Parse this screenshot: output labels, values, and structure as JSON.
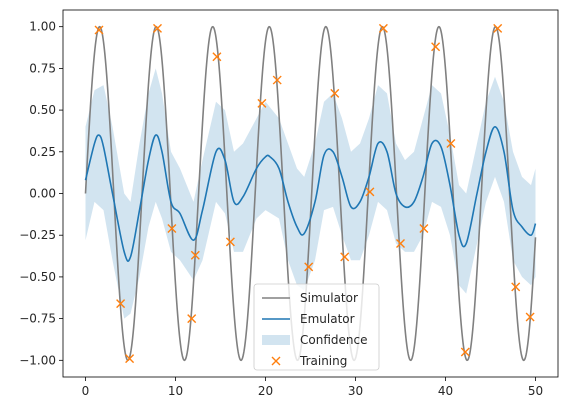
{
  "chart_data": {
    "type": "line",
    "title": "",
    "xlabel": "",
    "ylabel": "",
    "xlim": [
      -2.5,
      52.5
    ],
    "ylim": [
      -1.1,
      1.1
    ],
    "xticks": [
      0,
      10,
      20,
      30,
      40,
      50
    ],
    "yticks": [
      -1.0,
      -0.75,
      -0.5,
      -0.25,
      0.0,
      0.25,
      0.5,
      0.75,
      1.0
    ],
    "xtick_labels": [
      "0",
      "10",
      "20",
      "30",
      "40",
      "50"
    ],
    "ytick_labels": [
      "−1.00",
      "−0.75",
      "−0.50",
      "−0.25",
      "0.00",
      "0.25",
      "0.50",
      "0.75",
      "1.00"
    ],
    "grid": false,
    "legend_position": "lower center",
    "legend": [
      "Simulator",
      "Emulator",
      "Confidence",
      "Training"
    ],
    "series": [
      {
        "name": "Simulator",
        "type": "line",
        "color": "#808080",
        "function": "sin(x)",
        "x_range": [
          0,
          50
        ]
      },
      {
        "name": "Emulator",
        "type": "line",
        "color": "#1f77b4",
        "x": [
          0,
          1,
          1.5,
          2,
          3,
          4.3,
          5,
          6,
          7,
          7.8,
          8.5,
          9.5,
          10.5,
          12,
          13,
          14.5,
          15.5,
          16.5,
          17.5,
          19,
          20,
          20.5,
          21.5,
          22.5,
          23.5,
          24.3,
          25.5,
          26.5,
          27.5,
          28.5,
          29.5,
          30.5,
          31.5,
          32.5,
          33.5,
          34.5,
          35.5,
          36.5,
          37.5,
          38.5,
          39.5,
          40.5,
          41.5,
          42.3,
          43.5,
          44.5,
          45.5,
          46.5,
          47.5,
          48.5,
          49.5,
          50
        ],
        "y": [
          0.08,
          0.3,
          0.35,
          0.28,
          0.0,
          -0.35,
          -0.38,
          -0.1,
          0.2,
          0.35,
          0.25,
          -0.05,
          -0.12,
          -0.28,
          -0.1,
          0.25,
          0.2,
          -0.05,
          -0.02,
          0.15,
          0.22,
          0.22,
          0.15,
          -0.05,
          -0.2,
          -0.24,
          -0.05,
          0.23,
          0.25,
          0.1,
          -0.08,
          -0.05,
          0.1,
          0.3,
          0.25,
          0.0,
          -0.08,
          -0.05,
          0.1,
          0.3,
          0.28,
          0.05,
          -0.25,
          -0.3,
          0.0,
          0.25,
          0.4,
          0.25,
          -0.1,
          -0.2,
          -0.25,
          -0.18
        ]
      },
      {
        "name": "Confidence",
        "type": "area",
        "color": "#1f77b4",
        "x": [
          0,
          1,
          2,
          3,
          4.3,
          5,
          6,
          7,
          7.8,
          8.5,
          9.5,
          10.5,
          12,
          13,
          14.5,
          15.5,
          16.5,
          17.5,
          19,
          20,
          21.5,
          22.5,
          23.5,
          24.3,
          25.5,
          26.5,
          27.5,
          28.5,
          29.5,
          30.5,
          31.5,
          32.5,
          33.5,
          34.5,
          35.5,
          36.5,
          37.5,
          38.5,
          39.5,
          40.5,
          41.5,
          42.3,
          43.5,
          44.5,
          45.5,
          46.5,
          47.5,
          48.5,
          49.5,
          50
        ],
        "upper": [
          0.4,
          0.62,
          0.65,
          0.4,
          0.0,
          -0.05,
          0.3,
          0.6,
          0.75,
          0.6,
          0.25,
          0.15,
          -0.05,
          0.2,
          0.55,
          0.5,
          0.25,
          0.3,
          0.45,
          0.55,
          0.45,
          0.3,
          0.15,
          0.1,
          0.3,
          0.55,
          0.6,
          0.45,
          0.25,
          0.3,
          0.45,
          0.65,
          0.6,
          0.3,
          0.2,
          0.25,
          0.45,
          0.65,
          0.6,
          0.35,
          0.05,
          0.0,
          0.3,
          0.55,
          0.7,
          0.55,
          0.25,
          0.1,
          0.05,
          0.15
        ],
        "lower": [
          -0.28,
          -0.05,
          -0.1,
          -0.4,
          -0.75,
          -0.72,
          -0.5,
          -0.2,
          -0.05,
          -0.15,
          -0.35,
          -0.4,
          -0.52,
          -0.4,
          -0.05,
          -0.12,
          -0.35,
          -0.35,
          -0.15,
          -0.1,
          -0.15,
          -0.4,
          -0.55,
          -0.58,
          -0.4,
          -0.1,
          -0.08,
          -0.25,
          -0.4,
          -0.4,
          -0.25,
          -0.05,
          -0.1,
          -0.3,
          -0.35,
          -0.35,
          -0.25,
          -0.05,
          -0.08,
          -0.25,
          -0.55,
          -0.6,
          -0.3,
          -0.05,
          0.1,
          -0.05,
          -0.4,
          -0.5,
          -0.55,
          -0.5
        ]
      },
      {
        "name": "Training",
        "type": "scatter",
        "marker": "x",
        "color": "#ff7f0e",
        "x": [
          1.5,
          3.9,
          4.9,
          8,
          9.6,
          11.8,
          12.2,
          14.6,
          16.1,
          19.6,
          21.3,
          24.8,
          27.7,
          28.8,
          31.6,
          33.1,
          35,
          37.6,
          38.9,
          40.6,
          42.2,
          45.8,
          47.8,
          49.4
        ],
        "y": [
          0.98,
          -0.66,
          -0.99,
          0.99,
          -0.21,
          -0.75,
          -0.37,
          0.82,
          -0.29,
          0.54,
          0.68,
          -0.44,
          0.6,
          -0.38,
          0.01,
          0.99,
          -0.3,
          -0.21,
          0.88,
          0.3,
          -0.95,
          0.99,
          -0.56,
          -0.74
        ]
      }
    ]
  }
}
